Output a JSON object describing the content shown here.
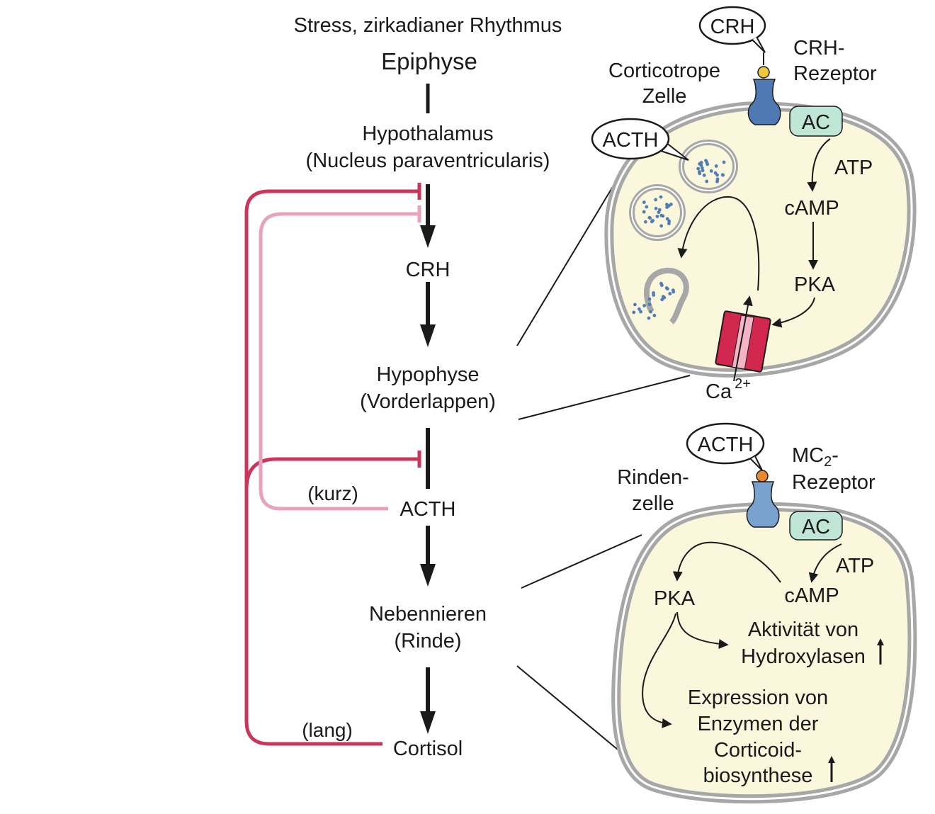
{
  "axis": {
    "stress": "Stress, zirkadianer Rhythmus",
    "epiphyse": "Epiphyse",
    "hypothalamus_1": "Hypothalamus",
    "hypothalamus_2": "(Nucleus paraventricularis)",
    "crh": "CRH",
    "hypophyse_1": "Hypophyse",
    "hypophyse_2": "(Vorderlappen)",
    "acth": "ACTH",
    "nebennieren_1": "Nebennieren",
    "nebennieren_2": "(Rinde)",
    "cortisol": "Cortisol"
  },
  "feedback": {
    "short": "(kurz)",
    "long": "(lang)"
  },
  "cell_top": {
    "name_1": "Corticotrope",
    "name_2": "Zelle",
    "ligand": "CRH",
    "receptor_1": "CRH-",
    "receptor_2": "Rezeptor",
    "ac": "AC",
    "atp": "ATP",
    "camp": "cAMP",
    "pka": "PKA",
    "granule_label": "ACTH",
    "ion": "Ca",
    "ion_charge": "2+"
  },
  "cell_bottom": {
    "name_1": "Rinden-",
    "name_2": "zelle",
    "ligand": "ACTH",
    "receptor_1a": "MC",
    "receptor_1sub": "2",
    "receptor_1b": "-",
    "receptor_2": "Rezeptor",
    "ac": "AC",
    "atp": "ATP",
    "camp": "cAMP",
    "pka": "PKA",
    "effect1_1": "Aktivität von",
    "effect1_2": "Hydroxylasen",
    "effect2_1": "Expression von",
    "effect2_2": "Enzymen der",
    "effect2_3": "Corticoid-",
    "effect2_4": "biosynthese"
  },
  "colors": {
    "dark_feedback": "#c8375a",
    "light_feedback": "#e9a3b8",
    "cell_fill": "#fbf7dd",
    "membrane": "#a7a7a7",
    "receptor": "#4f79b3",
    "receptor_light": "#7aa2cf",
    "ac_fill": "#bfe6d6",
    "channel": "#d2284f",
    "granule_dot": "#4f7db5"
  }
}
